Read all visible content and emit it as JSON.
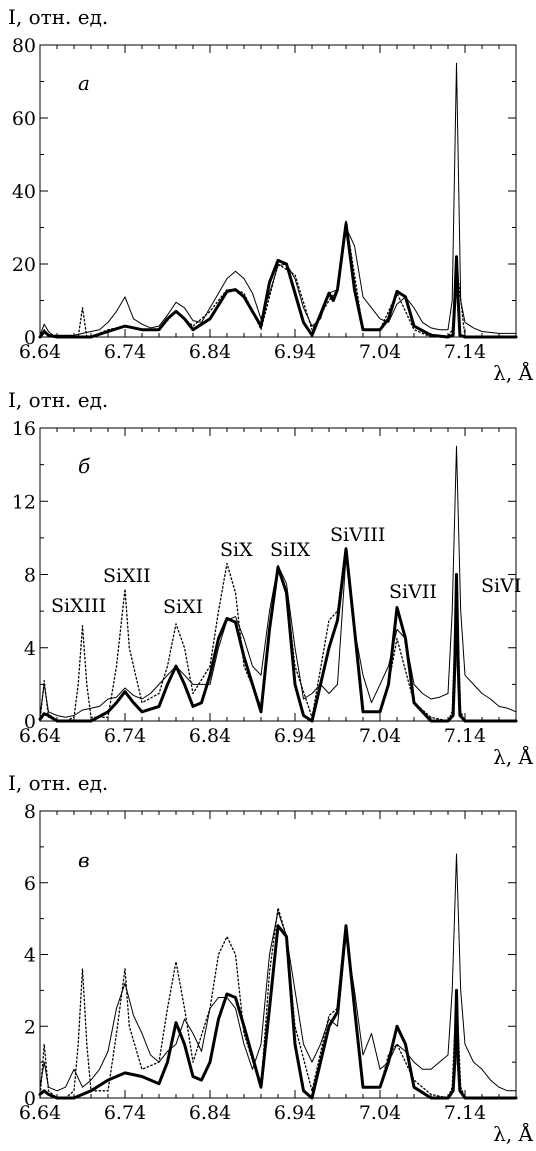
{
  "chart_data": [
    {
      "type": "line",
      "panel_label": "а",
      "ylabel": "I, отн. ед.",
      "xlabel": "λ, Å",
      "xlim": [
        6.64,
        7.2
      ],
      "ylim": [
        0,
        80
      ],
      "xticks": [
        6.64,
        6.74,
        6.84,
        6.94,
        7.04,
        7.14
      ],
      "xtick_labels": [
        "6.64",
        "6.74",
        "6.84",
        "6.94",
        "7.04",
        "7.14"
      ],
      "yticks": [
        0,
        20,
        40,
        60,
        80
      ],
      "ytick_labels": [
        "0",
        "20",
        "40",
        "60",
        "80"
      ],
      "legend": "none",
      "grid": false,
      "series": [
        {
          "style": "thin",
          "x": [
            6.64,
            6.645,
            6.65,
            6.655,
            6.66,
            6.68,
            6.69,
            6.7,
            6.71,
            6.72,
            6.73,
            6.74,
            6.75,
            6.76,
            6.77,
            6.78,
            6.79,
            6.8,
            6.81,
            6.82,
            6.83,
            6.84,
            6.85,
            6.86,
            6.87,
            6.88,
            6.89,
            6.9,
            6.91,
            6.92,
            6.93,
            6.94,
            6.95,
            6.96,
            6.97,
            6.98,
            6.99,
            7.0,
            7.01,
            7.02,
            7.03,
            7.04,
            7.05,
            7.06,
            7.07,
            7.08,
            7.09,
            7.1,
            7.11,
            7.12,
            7.125,
            7.13,
            7.135,
            7.14,
            7.15,
            7.16,
            7.18,
            7.19,
            7.2
          ],
          "y": [
            0.5,
            3.5,
            1.5,
            0.5,
            0.5,
            0.5,
            1,
            1.5,
            2,
            4,
            7,
            11,
            5,
            3.5,
            2.5,
            3,
            6,
            9.5,
            8,
            4.5,
            4,
            8,
            12,
            16,
            18,
            16,
            12,
            5,
            12,
            19.5,
            20,
            16,
            8,
            3,
            5,
            12,
            13,
            30,
            25,
            11,
            8,
            5,
            4,
            9,
            11,
            8,
            4,
            2.5,
            2,
            2,
            10,
            75,
            10,
            4,
            2.5,
            1.5,
            1,
            1,
            1
          ]
        },
        {
          "style": "dotted",
          "x": [
            6.64,
            6.645,
            6.65,
            6.66,
            6.67,
            6.68,
            6.685,
            6.69,
            6.695,
            6.7,
            6.72,
            6.74,
            6.76,
            6.78,
            6.8,
            6.82,
            6.84,
            6.86,
            6.87,
            6.88,
            6.9,
            6.92,
            6.94,
            6.96,
            6.98,
            6.99,
            7.0,
            7.02,
            7.04,
            7.06,
            7.08,
            7.1,
            7.12,
            7.125,
            7.13,
            7.14,
            7.2
          ],
          "y": [
            0,
            2,
            0,
            0,
            0,
            0,
            0,
            8,
            0,
            0,
            2,
            3,
            2,
            2,
            7,
            3,
            7,
            13,
            13,
            12,
            2,
            20,
            17,
            2,
            10,
            13,
            32,
            2,
            2,
            12,
            2,
            0,
            0,
            2,
            20,
            0,
            0
          ]
        },
        {
          "style": "thick",
          "x": [
            6.64,
            6.645,
            6.65,
            6.66,
            6.7,
            6.72,
            6.74,
            6.76,
            6.78,
            6.79,
            6.8,
            6.81,
            6.82,
            6.84,
            6.86,
            6.87,
            6.88,
            6.9,
            6.91,
            6.92,
            6.93,
            6.94,
            6.95,
            6.96,
            6.98,
            6.985,
            6.99,
            7.0,
            7.01,
            7.02,
            7.04,
            7.05,
            7.06,
            7.07,
            7.08,
            7.1,
            7.12,
            7.126,
            7.128,
            7.13,
            7.132,
            7.134,
            7.14,
            7.2
          ],
          "y": [
            0,
            1.5,
            0.5,
            0,
            0,
            1.5,
            3,
            2,
            2,
            5,
            7,
            5,
            2,
            5,
            12.5,
            13,
            11,
            3,
            15,
            21,
            20,
            12,
            4,
            0.5,
            12,
            10,
            13,
            31,
            13,
            2,
            2,
            5,
            12.5,
            11,
            3,
            0.5,
            0,
            0.5,
            10,
            22,
            10,
            0.5,
            0,
            0
          ]
        }
      ],
      "annotations": []
    },
    {
      "type": "line",
      "panel_label": "б",
      "ylabel": "I, отн. ед.",
      "xlabel": "λ, Å",
      "xlim": [
        6.64,
        7.2
      ],
      "ylim": [
        0,
        16
      ],
      "xticks": [
        6.64,
        6.74,
        6.84,
        6.94,
        7.04,
        7.14
      ],
      "xtick_labels": [
        "6.64",
        "6.74",
        "6.84",
        "6.94",
        "7.04",
        "7.14"
      ],
      "yticks": [
        0,
        4,
        8,
        12,
        16
      ],
      "ytick_labels": [
        "0",
        "4",
        "8",
        "12",
        "16"
      ],
      "legend": "none",
      "grid": false,
      "series": [
        {
          "style": "thin",
          "x": [
            6.64,
            6.645,
            6.65,
            6.66,
            6.67,
            6.68,
            6.69,
            6.7,
            6.71,
            6.72,
            6.73,
            6.74,
            6.75,
            6.76,
            6.77,
            6.78,
            6.79,
            6.8,
            6.81,
            6.82,
            6.83,
            6.84,
            6.85,
            6.86,
            6.87,
            6.88,
            6.89,
            6.9,
            6.91,
            6.92,
            6.93,
            6.94,
            6.95,
            6.96,
            6.97,
            6.98,
            6.99,
            7.0,
            7.01,
            7.02,
            7.03,
            7.04,
            7.05,
            7.06,
            7.07,
            7.08,
            7.09,
            7.1,
            7.11,
            7.12,
            7.125,
            7.13,
            7.135,
            7.14,
            7.15,
            7.16,
            7.17,
            7.18,
            7.19,
            7.2
          ],
          "y": [
            0.3,
            2,
            0.5,
            0.3,
            0.2,
            0.3,
            0.6,
            0.7,
            0.8,
            1.2,
            1.3,
            1.8,
            1.4,
            1.2,
            1.5,
            2,
            2.5,
            3,
            2.5,
            2,
            2,
            2,
            4,
            5.5,
            5.7,
            4.5,
            3,
            2.5,
            6,
            8.5,
            7.5,
            4,
            1.2,
            1.5,
            2,
            1.5,
            2,
            9,
            5,
            2.5,
            1,
            2,
            3,
            5,
            4.5,
            2,
            1.5,
            1.2,
            1.3,
            1.5,
            6,
            15,
            6,
            2.5,
            2,
            1.5,
            1.2,
            0.8,
            0.7,
            0.5
          ]
        },
        {
          "style": "dotted",
          "x": [
            6.64,
            6.645,
            6.65,
            6.66,
            6.67,
            6.68,
            6.685,
            6.69,
            6.695,
            6.7,
            6.72,
            6.73,
            6.74,
            6.745,
            6.76,
            6.78,
            6.79,
            6.8,
            6.81,
            6.82,
            6.84,
            6.85,
            6.86,
            6.87,
            6.88,
            6.9,
            6.91,
            6.92,
            6.93,
            6.94,
            6.96,
            6.98,
            6.99,
            7.0,
            7.02,
            7.04,
            7.05,
            7.06,
            7.08,
            7.1,
            7.12,
            7.125,
            7.13,
            7.135,
            7.14,
            7.2
          ],
          "y": [
            0,
            2.2,
            0.2,
            0,
            0,
            0.2,
            2,
            5.2,
            2,
            0.2,
            0.2,
            3,
            7.2,
            4,
            1,
            1.5,
            3,
            5.3,
            4,
            1.5,
            3,
            6,
            8.6,
            7,
            3,
            0.8,
            5,
            8.5,
            7,
            3,
            0.2,
            5.5,
            6,
            9.5,
            0.5,
            0.5,
            2,
            4.5,
            1,
            0.2,
            0,
            0.5,
            7.5,
            0.5,
            0,
            0
          ]
        },
        {
          "style": "thick",
          "x": [
            6.64,
            6.645,
            6.65,
            6.66,
            6.7,
            6.72,
            6.73,
            6.74,
            6.75,
            6.76,
            6.78,
            6.79,
            6.8,
            6.81,
            6.82,
            6.83,
            6.84,
            6.85,
            6.86,
            6.87,
            6.88,
            6.9,
            6.91,
            6.92,
            6.93,
            6.94,
            6.95,
            6.96,
            6.98,
            6.99,
            7.0,
            7.01,
            7.02,
            7.04,
            7.05,
            7.06,
            7.07,
            7.08,
            7.1,
            7.12,
            7.126,
            7.128,
            7.13,
            7.132,
            7.134,
            7.14,
            7.2
          ],
          "y": [
            0.1,
            0.4,
            0.3,
            0,
            0,
            0.5,
            1,
            1.6,
            1,
            0.5,
            0.8,
            2,
            3,
            2,
            0.8,
            1,
            2.5,
            4.5,
            5.6,
            5.4,
            3.5,
            0.5,
            5,
            8.4,
            7,
            2,
            0.3,
            0,
            4,
            5.5,
            9.4,
            5,
            0.5,
            0.5,
            2,
            6.2,
            4.5,
            1,
            0,
            0,
            0.3,
            3,
            8,
            3,
            0.3,
            0,
            0
          ]
        }
      ],
      "annotations": [
        "SiXIII",
        "SiXII",
        "SiXI",
        "SiX",
        "SiIX",
        "SiVIII",
        "SiVII",
        "SiVI"
      ]
    },
    {
      "type": "line",
      "panel_label": "в",
      "ylabel": "I, отн. ед.",
      "xlabel": "λ, Å",
      "xlim": [
        6.64,
        7.2
      ],
      "ylim": [
        0,
        8
      ],
      "xticks": [
        6.64,
        6.74,
        6.84,
        6.94,
        7.04,
        7.14
      ],
      "xtick_labels": [
        "6.64",
        "6.74",
        "6.84",
        "6.94",
        "7.04",
        "7.14"
      ],
      "yticks": [
        0,
        2,
        4,
        6,
        8
      ],
      "ytick_labels": [
        "0",
        "2",
        "4",
        "6",
        "8"
      ],
      "legend": "none",
      "grid": false,
      "series": [
        {
          "style": "thin",
          "x": [
            6.64,
            6.645,
            6.65,
            6.66,
            6.67,
            6.68,
            6.69,
            6.7,
            6.71,
            6.72,
            6.73,
            6.74,
            6.75,
            6.76,
            6.77,
            6.78,
            6.79,
            6.8,
            6.81,
            6.82,
            6.83,
            6.84,
            6.85,
            6.86,
            6.87,
            6.88,
            6.89,
            6.9,
            6.91,
            6.92,
            6.93,
            6.94,
            6.95,
            6.96,
            6.97,
            6.98,
            6.99,
            7.0,
            7.01,
            7.02,
            7.03,
            7.04,
            7.05,
            7.06,
            7.07,
            7.08,
            7.09,
            7.1,
            7.11,
            7.12,
            7.125,
            7.13,
            7.135,
            7.14,
            7.15,
            7.16,
            7.17,
            7.18,
            7.19,
            7.2
          ],
          "y": [
            0.3,
            1,
            0.3,
            0.2,
            0.3,
            0.8,
            0.3,
            0.5,
            0.8,
            1.3,
            2.5,
            3.2,
            2.3,
            1.8,
            1.2,
            1,
            1.3,
            1.5,
            2.2,
            1.8,
            1.3,
            2.5,
            2.8,
            2.8,
            2.5,
            1.5,
            0.8,
            1.5,
            4,
            5.2,
            4.5,
            3,
            1.5,
            1,
            1.5,
            2.2,
            2,
            4.5,
            3,
            1.2,
            1.8,
            0.8,
            1,
            1.5,
            1.3,
            1,
            0.8,
            0.8,
            1,
            1.2,
            3,
            6.8,
            3,
            1.5,
            1,
            0.8,
            0.5,
            0.3,
            0.2,
            0.2
          ]
        },
        {
          "style": "dotted",
          "x": [
            6.64,
            6.645,
            6.65,
            6.66,
            6.67,
            6.68,
            6.685,
            6.69,
            6.695,
            6.7,
            6.72,
            6.73,
            6.74,
            6.745,
            6.76,
            6.78,
            6.79,
            6.8,
            6.81,
            6.82,
            6.84,
            6.85,
            6.86,
            6.87,
            6.88,
            6.9,
            6.91,
            6.92,
            6.93,
            6.94,
            6.96,
            6.98,
            6.99,
            7.0,
            7.02,
            7.04,
            7.05,
            7.06,
            7.08,
            7.1,
            7.12,
            7.125,
            7.13,
            7.135,
            7.14,
            7.2
          ],
          "y": [
            0,
            1.5,
            0.2,
            0,
            0,
            0.2,
            1.5,
            3.6,
            1.5,
            0.2,
            0.2,
            1.8,
            3.6,
            2,
            0.8,
            1,
            2.5,
            3.8,
            2.5,
            1,
            2.5,
            4,
            4.5,
            4,
            1.8,
            0.3,
            3.5,
            5.3,
            4.5,
            2,
            0.2,
            2.3,
            2.5,
            4.8,
            0.3,
            0.3,
            1.2,
            1.5,
            0.5,
            0.1,
            0,
            0.3,
            3,
            0.3,
            0,
            0
          ]
        },
        {
          "style": "thick",
          "x": [
            6.64,
            6.645,
            6.65,
            6.66,
            6.68,
            6.7,
            6.72,
            6.74,
            6.76,
            6.78,
            6.79,
            6.8,
            6.81,
            6.82,
            6.83,
            6.84,
            6.85,
            6.86,
            6.87,
            6.88,
            6.9,
            6.91,
            6.92,
            6.93,
            6.94,
            6.95,
            6.96,
            6.98,
            6.99,
            7.0,
            7.01,
            7.02,
            7.04,
            7.05,
            7.06,
            7.07,
            7.08,
            7.1,
            7.12,
            7.126,
            7.128,
            7.13,
            7.132,
            7.134,
            7.14,
            7.2
          ],
          "y": [
            0.1,
            0.2,
            0.1,
            0,
            0,
            0.2,
            0.5,
            0.7,
            0.6,
            0.4,
            1,
            2.1,
            1.5,
            0.6,
            0.5,
            1,
            2.2,
            2.9,
            2.8,
            2,
            0.3,
            2.5,
            4.8,
            4.5,
            1.5,
            0.2,
            0,
            2,
            2.4,
            4.8,
            2.5,
            0.3,
            0.3,
            1,
            2,
            1.5,
            0.3,
            0,
            0,
            0.2,
            1,
            3,
            1,
            0.2,
            0,
            0
          ]
        }
      ],
      "annotations": []
    }
  ]
}
